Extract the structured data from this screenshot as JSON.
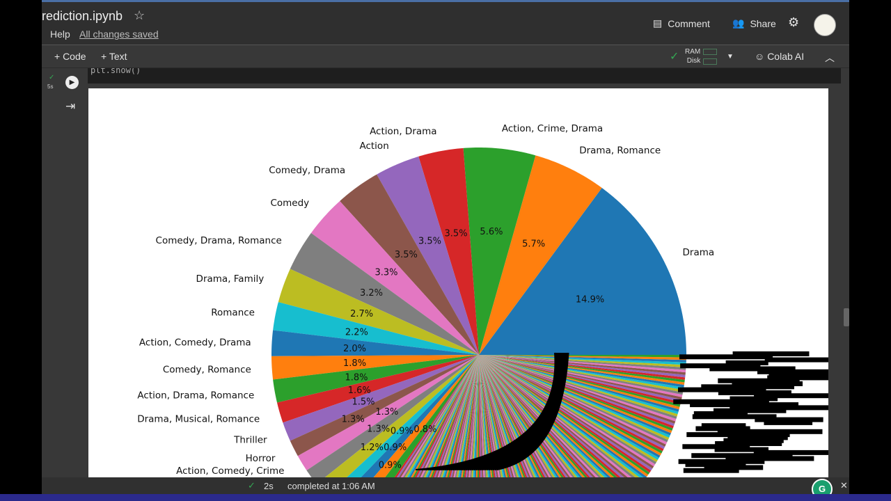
{
  "header": {
    "title": "rediction.ipynb",
    "help": "Help",
    "saved": "All changes saved",
    "comment": "Comment",
    "share": "Share"
  },
  "toolbar": {
    "code": "+ Code",
    "text": "+ Text",
    "ram": "RAM",
    "disk": "Disk",
    "colab_ai": "Colab AI"
  },
  "cell": {
    "code": "plt.show()",
    "exec_time": "5s"
  },
  "status": {
    "duration": "2s",
    "message": "completed at 1:06 AM"
  },
  "colors": {
    "accent": "#4a6fa5",
    "check": "#34a853"
  },
  "chart_data": {
    "type": "pie",
    "start_angle": 0,
    "slices": [
      {
        "label": "Drama",
        "pct": 14.9
      },
      {
        "label": "Drama, Romance",
        "pct": 5.7
      },
      {
        "label": "Action, Crime, Drama",
        "pct": 5.6
      },
      {
        "label": "Action, Drama",
        "pct": 3.5
      },
      {
        "label": "Action",
        "pct": 3.5
      },
      {
        "label": "Comedy, Drama",
        "pct": 3.5
      },
      {
        "label": "Comedy",
        "pct": 3.3
      },
      {
        "label": "Comedy, Drama, Romance",
        "pct": 3.2
      },
      {
        "label": "Drama, Family",
        "pct": 2.7
      },
      {
        "label": "Romance",
        "pct": 2.2
      },
      {
        "label": "Action, Comedy, Drama",
        "pct": 2.0
      },
      {
        "label": "Comedy, Romance",
        "pct": 1.8
      },
      {
        "label": "Action, Drama, Romance",
        "pct": 1.8
      },
      {
        "label": "Drama, Musical, Romance",
        "pct": 1.6
      },
      {
        "label": "Thriller",
        "pct": 1.5
      },
      {
        "label": "Horror",
        "pct": 1.3
      },
      {
        "label": "Action, Comedy, Crime",
        "pct": 1.3
      },
      {
        "label": "",
        "pct": 1.3
      },
      {
        "label": "",
        "pct": 1.2
      },
      {
        "label": "",
        "pct": 0.9
      },
      {
        "label": "",
        "pct": 0.9
      },
      {
        "label": "",
        "pct": 0.9
      },
      {
        "label": "",
        "pct": 0.8
      }
    ],
    "colors": [
      "#1f77b4",
      "#ff7f0e",
      "#2ca02c",
      "#d62728",
      "#9467bd",
      "#8c564b",
      "#e377c2",
      "#7f7f7f",
      "#bcbd22",
      "#17becf"
    ]
  }
}
